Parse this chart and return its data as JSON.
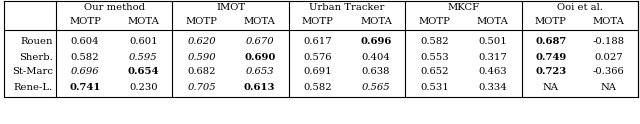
{
  "col_groups": [
    {
      "label": "Our method",
      "subcols": [
        "MOTP",
        "MOTA"
      ]
    },
    {
      "label": "IMOT",
      "subcols": [
        "MOTP",
        "MOTA"
      ]
    },
    {
      "label": "Urban Tracker",
      "subcols": [
        "MOTP",
        "MOTA"
      ]
    },
    {
      "label": "MKCF",
      "subcols": [
        "MOTP",
        "MOTA"
      ]
    },
    {
      "label": "Ooi et al.",
      "subcols": [
        "MOTP",
        "MOTA"
      ]
    }
  ],
  "rows": [
    "Rouen",
    "Sherb.",
    "St-Marc",
    "Rene-L."
  ],
  "data": [
    [
      [
        "0.604",
        "0.601"
      ],
      [
        "0.620",
        "0.670"
      ],
      [
        "0.617",
        "0.696"
      ],
      [
        "0.582",
        "0.501"
      ],
      [
        "0.687",
        "-0.188"
      ]
    ],
    [
      [
        "0.582",
        "0.595"
      ],
      [
        "0.590",
        "0.690"
      ],
      [
        "0.576",
        "0.404"
      ],
      [
        "0.553",
        "0.317"
      ],
      [
        "0.749",
        "0.027"
      ]
    ],
    [
      [
        "0.696",
        "0.654"
      ],
      [
        "0.682",
        "0.653"
      ],
      [
        "0.691",
        "0.638"
      ],
      [
        "0.652",
        "0.463"
      ],
      [
        "0.723",
        "-0.366"
      ]
    ],
    [
      [
        "0.741",
        "0.230"
      ],
      [
        "0.705",
        "0.613"
      ],
      [
        "0.582",
        "0.565"
      ],
      [
        "0.531",
        "0.334"
      ],
      [
        "NA",
        "NA"
      ]
    ]
  ],
  "bold": [
    [
      [
        false,
        false
      ],
      [
        false,
        false
      ],
      [
        false,
        true
      ],
      [
        false,
        false
      ],
      [
        true,
        false
      ]
    ],
    [
      [
        false,
        false
      ],
      [
        false,
        true
      ],
      [
        false,
        false
      ],
      [
        false,
        false
      ],
      [
        true,
        false
      ]
    ],
    [
      [
        false,
        true
      ],
      [
        false,
        false
      ],
      [
        false,
        false
      ],
      [
        false,
        false
      ],
      [
        true,
        false
      ]
    ],
    [
      [
        true,
        false
      ],
      [
        false,
        true
      ],
      [
        false,
        false
      ],
      [
        false,
        false
      ],
      [
        false,
        false
      ]
    ]
  ],
  "italic": [
    [
      [
        false,
        false
      ],
      [
        true,
        true
      ],
      [
        false,
        false
      ],
      [
        false,
        false
      ],
      [
        false,
        false
      ]
    ],
    [
      [
        false,
        true
      ],
      [
        true,
        false
      ],
      [
        false,
        false
      ],
      [
        false,
        false
      ],
      [
        false,
        false
      ]
    ],
    [
      [
        true,
        false
      ],
      [
        false,
        true
      ],
      [
        false,
        false
      ],
      [
        false,
        false
      ],
      [
        false,
        false
      ]
    ],
    [
      [
        false,
        false
      ],
      [
        true,
        false
      ],
      [
        false,
        true
      ],
      [
        false,
        false
      ],
      [
        false,
        false
      ]
    ]
  ],
  "figsize": [
    6.4,
    1.24
  ],
  "dpi": 100,
  "font_size": 7.2,
  "background_color": "#ffffff"
}
